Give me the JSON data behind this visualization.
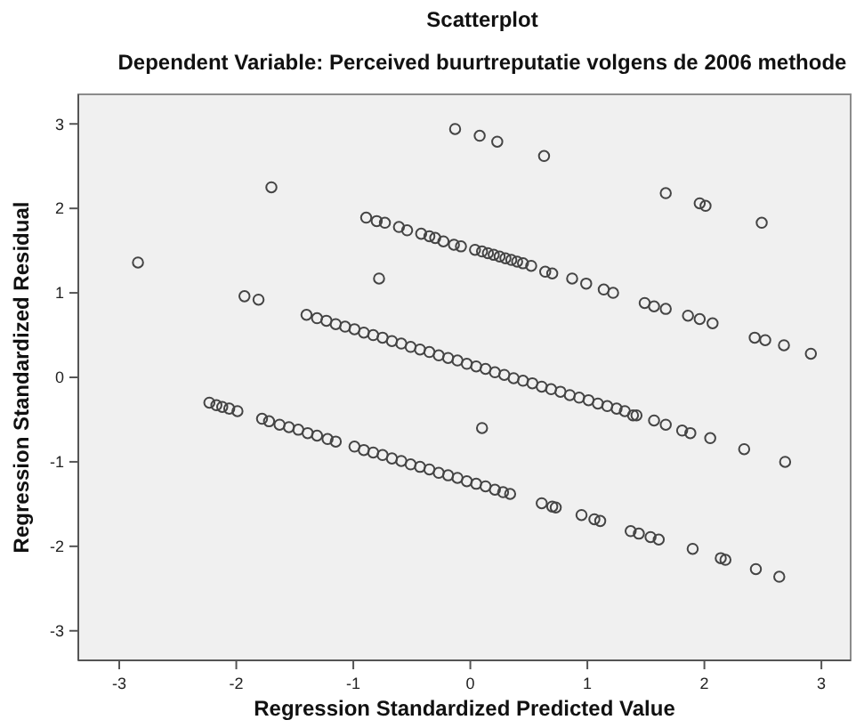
{
  "chart_data": {
    "type": "scatter",
    "title": "Scatterplot",
    "subtitle": "Dependent Variable: Perceived buurtreputatie volgens de 2006 methode",
    "xlabel": "Regression Standardized Predicted Value",
    "ylabel": "Regression Standardized Residual",
    "xlim": [
      -3.35,
      3.25
    ],
    "ylim": [
      -3.35,
      3.35
    ],
    "xticks": [
      -3,
      -2,
      -1,
      0,
      1,
      2,
      3
    ],
    "yticks": [
      -3,
      -2,
      -1,
      0,
      1,
      2,
      3
    ],
    "grid": false,
    "marker": "circle",
    "series": [
      {
        "color": "#444444",
        "x": [
          -2.84,
          -1.7,
          -1.93,
          -1.81,
          -0.78,
          0.1,
          -0.13,
          0.08,
          0.23,
          0.63,
          1.67,
          1.96,
          2.01,
          2.49,
          -0.89,
          -0.8,
          -0.73,
          -0.61,
          -0.54,
          -0.42,
          -0.35,
          -0.3,
          -0.23,
          -0.14,
          -0.08,
          0.04,
          0.1,
          0.15,
          0.2,
          0.25,
          0.3,
          0.35,
          0.4,
          0.45,
          0.52,
          0.64,
          0.7,
          0.87,
          0.99,
          1.14,
          1.22,
          1.49,
          1.57,
          1.67,
          1.86,
          1.96,
          2.07,
          2.43,
          2.52,
          2.68,
          2.91,
          -1.4,
          -1.31,
          -1.23,
          -1.15,
          -1.07,
          -0.99,
          -0.91,
          -0.83,
          -0.75,
          -0.67,
          -0.59,
          -0.51,
          -0.43,
          -0.35,
          -0.27,
          -0.19,
          -0.11,
          -0.03,
          0.05,
          0.13,
          0.21,
          0.29,
          0.37,
          0.45,
          0.53,
          0.61,
          0.69,
          0.77,
          0.85,
          0.93,
          1.01,
          1.09,
          1.17,
          1.25,
          1.32,
          1.39,
          1.42,
          1.57,
          1.67,
          1.81,
          1.88,
          2.05,
          2.34,
          2.69,
          -2.23,
          -2.17,
          -2.12,
          -2.06,
          -1.99,
          -1.78,
          -1.72,
          -1.63,
          -1.55,
          -1.47,
          -1.39,
          -1.31,
          -1.22,
          -1.15,
          -0.99,
          -0.91,
          -0.83,
          -0.75,
          -0.67,
          -0.59,
          -0.51,
          -0.43,
          -0.35,
          -0.27,
          -0.19,
          -0.11,
          -0.03,
          0.05,
          0.13,
          0.21,
          0.28,
          0.34,
          0.61,
          0.7,
          0.73,
          0.95,
          1.06,
          1.11,
          1.37,
          1.44,
          1.54,
          1.61,
          1.9,
          2.14,
          2.18,
          2.44,
          2.64
        ],
        "values": [
          1.36,
          2.25,
          0.96,
          0.92,
          1.17,
          -0.6,
          2.94,
          2.86,
          2.79,
          2.62,
          2.18,
          2.06,
          2.03,
          1.83,
          1.89,
          1.85,
          1.83,
          1.78,
          1.74,
          1.7,
          1.67,
          1.65,
          1.61,
          1.57,
          1.55,
          1.51,
          1.49,
          1.47,
          1.45,
          1.43,
          1.41,
          1.39,
          1.37,
          1.35,
          1.32,
          1.25,
          1.23,
          1.17,
          1.11,
          1.04,
          1.0,
          0.88,
          0.84,
          0.81,
          0.73,
          0.69,
          0.64,
          0.47,
          0.44,
          0.38,
          0.28,
          0.74,
          0.7,
          0.67,
          0.63,
          0.6,
          0.57,
          0.53,
          0.5,
          0.47,
          0.43,
          0.4,
          0.36,
          0.33,
          0.3,
          0.26,
          0.23,
          0.2,
          0.16,
          0.13,
          0.1,
          0.06,
          0.03,
          -0.01,
          -0.04,
          -0.07,
          -0.11,
          -0.14,
          -0.17,
          -0.21,
          -0.24,
          -0.27,
          -0.31,
          -0.34,
          -0.37,
          -0.4,
          -0.45,
          -0.45,
          -0.51,
          -0.56,
          -0.63,
          -0.66,
          -0.72,
          -0.85,
          -1.0,
          -0.3,
          -0.33,
          -0.35,
          -0.37,
          -0.4,
          -0.49,
          -0.52,
          -0.56,
          -0.59,
          -0.62,
          -0.66,
          -0.69,
          -0.73,
          -0.76,
          -0.82,
          -0.86,
          -0.89,
          -0.92,
          -0.96,
          -0.99,
          -1.03,
          -1.06,
          -1.09,
          -1.13,
          -1.16,
          -1.19,
          -1.23,
          -1.26,
          -1.29,
          -1.33,
          -1.36,
          -1.38,
          -1.49,
          -1.53,
          -1.54,
          -1.63,
          -1.68,
          -1.7,
          -1.82,
          -1.85,
          -1.89,
          -1.92,
          -2.03,
          -2.14,
          -2.16,
          -2.27,
          -2.36
        ]
      }
    ]
  }
}
